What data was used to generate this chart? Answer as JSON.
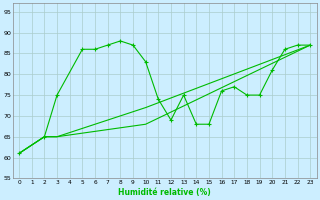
{
  "title": "",
  "xlabel": "Humidité relative (%)",
  "ylabel": "",
  "background_color": "#cceeff",
  "grid_color": "#aacccc",
  "line_color": "#00bb00",
  "xlim": [
    -0.5,
    23.5
  ],
  "ylim": [
    55,
    97
  ],
  "yticks": [
    55,
    60,
    65,
    70,
    75,
    80,
    85,
    90,
    95
  ],
  "xticks": [
    0,
    1,
    2,
    3,
    4,
    5,
    6,
    7,
    8,
    9,
    10,
    11,
    12,
    13,
    14,
    15,
    16,
    17,
    18,
    19,
    20,
    21,
    22,
    23
  ],
  "line1_x": [
    0,
    2,
    3,
    5,
    6,
    7,
    8,
    9,
    10,
    11,
    12,
    13,
    14,
    15,
    16,
    17,
    18,
    19,
    20,
    21,
    22,
    23
  ],
  "line1_y": [
    61,
    65,
    75,
    86,
    86,
    87,
    88,
    87,
    83,
    74,
    69,
    75,
    68,
    68,
    76,
    77,
    75,
    75,
    81,
    86,
    87,
    87
  ],
  "line2_x": [
    0,
    2,
    3,
    10,
    23
  ],
  "line2_y": [
    61,
    65,
    65,
    72,
    87
  ],
  "line3_x": [
    0,
    2,
    3,
    10,
    23
  ],
  "line3_y": [
    61,
    65,
    65,
    68,
    87
  ]
}
